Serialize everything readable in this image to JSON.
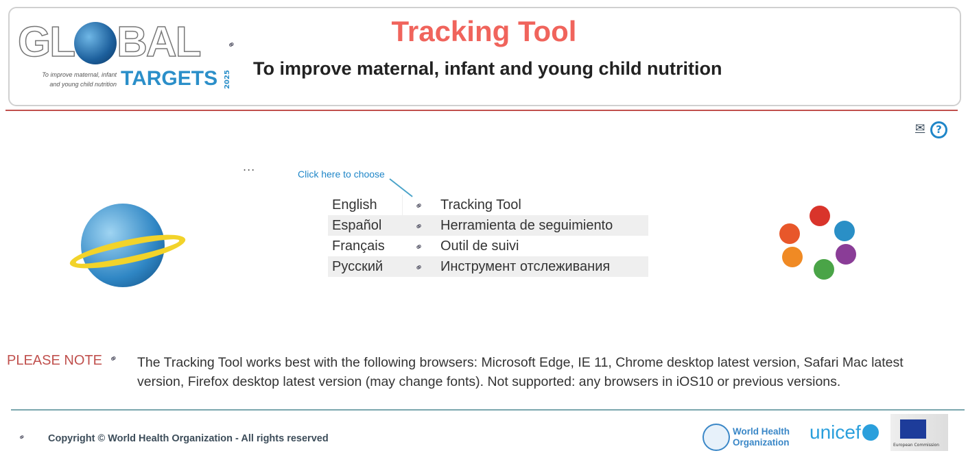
{
  "header": {
    "logo": {
      "word": "GLOBAL",
      "targets": "TARGETS",
      "year": "2025",
      "tagline_1": "To improve maternal, infant",
      "tagline_2": "and young child nutrition"
    },
    "title": "Tracking Tool",
    "subtitle": "To improve maternal, infant and young child nutrition"
  },
  "toolbar": {
    "more": "...",
    "email_icon": "envelope-icon",
    "help_icon": "question-circle-icon"
  },
  "chooser": {
    "hint": "Click here to choose",
    "languages": [
      {
        "language": "English",
        "tool": "Tracking Tool"
      },
      {
        "language": "Español",
        "tool": "Herramienta de seguimiento"
      },
      {
        "language": "Français",
        "tool": "Outil de suivi"
      },
      {
        "language": "Русский",
        "tool": "Инструмент отслеживания"
      }
    ]
  },
  "note": {
    "label": "PLEASE NOTE",
    "text": "The Tracking Tool works best with the following browsers: Microsoft Edge, IE 11, Chrome desktop latest version, Safari Mac latest version, Firefox desktop latest version (may change fonts). Not supported: any browsers in iOS10 or previous versions."
  },
  "footer": {
    "copyright": "Copyright © World Health Organization - All rights reserved",
    "who": {
      "line1": "World Health",
      "line2": "Organization"
    },
    "unicef": "unicef",
    "ec": "European Commission"
  },
  "colors": {
    "title": "#f0645c",
    "accent_red": "#c0504d",
    "link_blue": "#1f86c8",
    "divider": "#7aa6ad"
  }
}
